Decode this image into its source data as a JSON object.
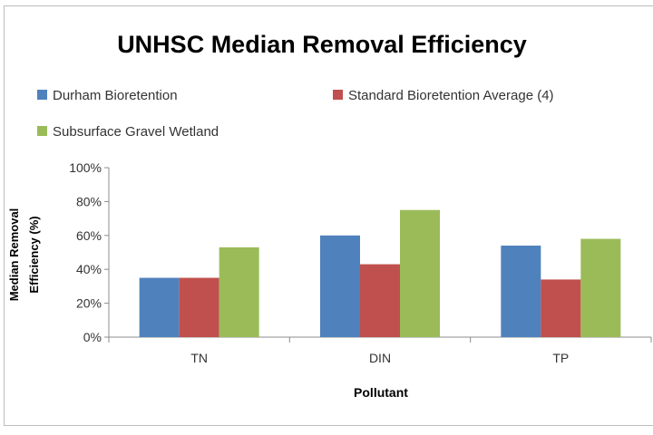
{
  "chart_data": {
    "type": "bar",
    "title": "UNHSC Median Removal Efficiency",
    "xlabel": "Pollutant",
    "ylabel": [
      "Median Removal",
      "Efficiency (%)"
    ],
    "categories": [
      "TN",
      "DIN",
      "TP"
    ],
    "series": [
      {
        "name": "Durham Bioretention",
        "values": [
          35,
          60,
          54
        ],
        "color": "#4f81bd"
      },
      {
        "name": "Standard Bioretention Average (4)",
        "values": [
          35,
          43,
          34
        ],
        "color": "#c0504d"
      },
      {
        "name": "Subsurface Gravel Wetland",
        "values": [
          53,
          75,
          58
        ],
        "color": "#9bbb59"
      }
    ],
    "ylim": [
      0,
      100
    ],
    "yticks": [
      0,
      20,
      40,
      60,
      80,
      100
    ],
    "ytick_labels": [
      "0%",
      "20%",
      "40%",
      "60%",
      "80%",
      "100%"
    ],
    "grid": false,
    "legend": "top"
  }
}
